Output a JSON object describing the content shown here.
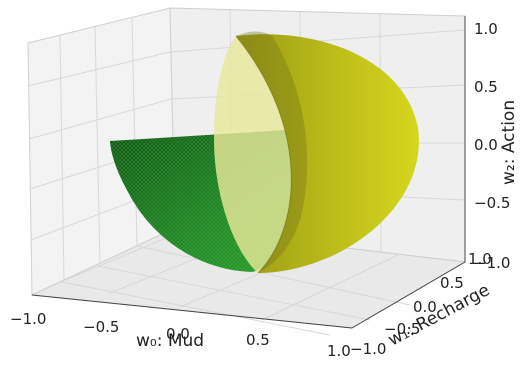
{
  "chart_data": {
    "type": "3d-surface",
    "axes": {
      "x": {
        "label": "w₀: Mud",
        "ticks": [
          "−1.0",
          "−0.5",
          "0.0",
          "0.5",
          "1.0"
        ],
        "range": [
          -1.0,
          1.0
        ]
      },
      "y": {
        "label": "w₁: Recharge",
        "ticks": [
          "−1.0",
          "−0.5",
          "0.0",
          "0.5",
          "1.0"
        ],
        "range": [
          -1.0,
          1.0
        ]
      },
      "z": {
        "label": "w₂: Action",
        "ticks": [
          "−1.0",
          "−0.5",
          "0.0",
          "0.5",
          "1.0"
        ],
        "range": [
          -1.0,
          1.0
        ]
      }
    },
    "grid": true,
    "series": [
      {
        "surface": "quarter sphere, w₂ ≤ 0 and w₀ ≤ 0",
        "color": "#1f7a1f"
      },
      {
        "surface": "half sphere, w₀ ≥ 0",
        "color": "#c8c814"
      }
    ]
  }
}
